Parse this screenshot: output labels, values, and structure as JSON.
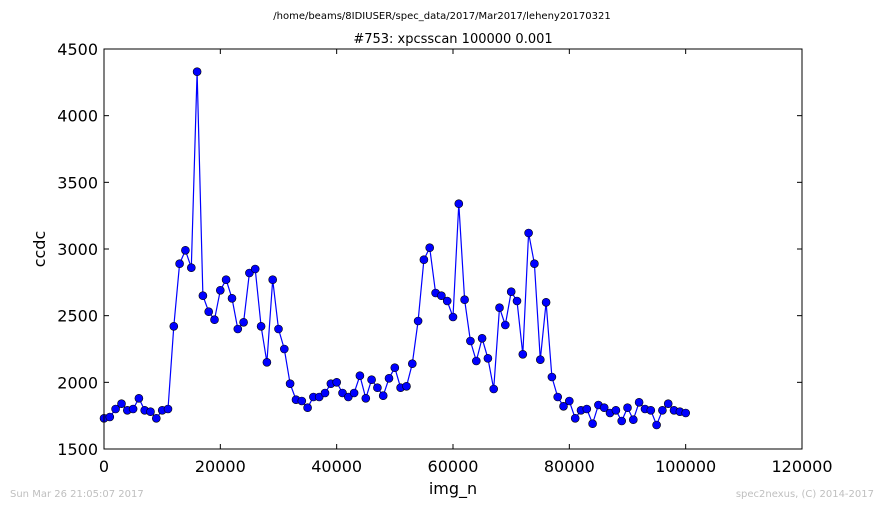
{
  "header": {
    "filepath": "/home/beams/8IDIUSER/spec_data/2017/Mar2017/leheny20170321"
  },
  "footer": {
    "timestamp": "Sun Mar 26 21:05:07 2017",
    "credit": "spec2nexus, (C) 2014-2017"
  },
  "chart_data": {
    "type": "line",
    "title": "#753: xpcsscan 100000 0.001",
    "xlabel": "img_n",
    "ylabel": "ccdc",
    "xlim": [
      0,
      120000
    ],
    "ylim": [
      1500,
      4500
    ],
    "xticks": [
      0,
      20000,
      40000,
      60000,
      80000,
      100000,
      120000
    ],
    "yticks": [
      1500,
      2000,
      2500,
      3000,
      3500,
      4000,
      4500
    ],
    "grid": false,
    "line_color": "#0000ff",
    "marker": "circle",
    "series": [
      {
        "x": [
          0,
          1000,
          2000,
          3000,
          4000,
          5000,
          6000,
          7000,
          8000,
          9000,
          10000,
          11000,
          12000,
          13000,
          14000,
          15000,
          16000,
          17000,
          18000,
          19000,
          20000,
          21000,
          22000,
          23000,
          24000,
          25000,
          26000,
          27000,
          28000,
          29000,
          30000,
          31000,
          32000,
          33000,
          34000,
          35000,
          36000,
          37000,
          38000,
          39000,
          40000,
          41000,
          42000,
          43000,
          44000,
          45000,
          46000,
          47000,
          48000,
          49000,
          50000,
          51000,
          52000,
          53000,
          54000,
          55000,
          56000,
          57000,
          58000,
          59000,
          60000,
          61000,
          62000,
          63000,
          64000,
          65000,
          66000,
          67000,
          68000,
          69000,
          70000,
          71000,
          72000,
          73000,
          74000,
          75000,
          76000,
          77000,
          78000,
          79000,
          80000,
          81000,
          82000,
          83000,
          84000,
          85000,
          86000,
          87000,
          88000,
          89000,
          90000,
          91000,
          92000,
          93000,
          94000,
          95000,
          96000,
          97000,
          98000,
          99000,
          100000
        ],
        "y": [
          1730,
          1740,
          1800,
          1840,
          1790,
          1800,
          1880,
          1790,
          1780,
          1730,
          1790,
          1800,
          2420,
          2890,
          2990,
          2860,
          4330,
          2650,
          2530,
          2470,
          2690,
          2770,
          2630,
          2400,
          2450,
          2820,
          2850,
          2420,
          2150,
          2770,
          2400,
          2250,
          1990,
          1870,
          1860,
          1810,
          1890,
          1890,
          1920,
          1990,
          2000,
          1920,
          1890,
          1920,
          2050,
          1880,
          2020,
          1960,
          1900,
          2030,
          2110,
          1960,
          1970,
          2140,
          2460,
          2920,
          3010,
          2670,
          2650,
          2610,
          2490,
          3340,
          2620,
          2310,
          2160,
          2330,
          2180,
          1950,
          2560,
          2430,
          2680,
          2610,
          2210,
          3120,
          2890,
          2170,
          2600,
          2040,
          1890,
          1820,
          1860,
          1730,
          1790,
          1800,
          1690,
          1830,
          1810,
          1770,
          1790,
          1710,
          1810,
          1720,
          1850,
          1800,
          1790,
          1680,
          1790,
          1840,
          1790,
          1780,
          1770
        ]
      }
    ]
  }
}
